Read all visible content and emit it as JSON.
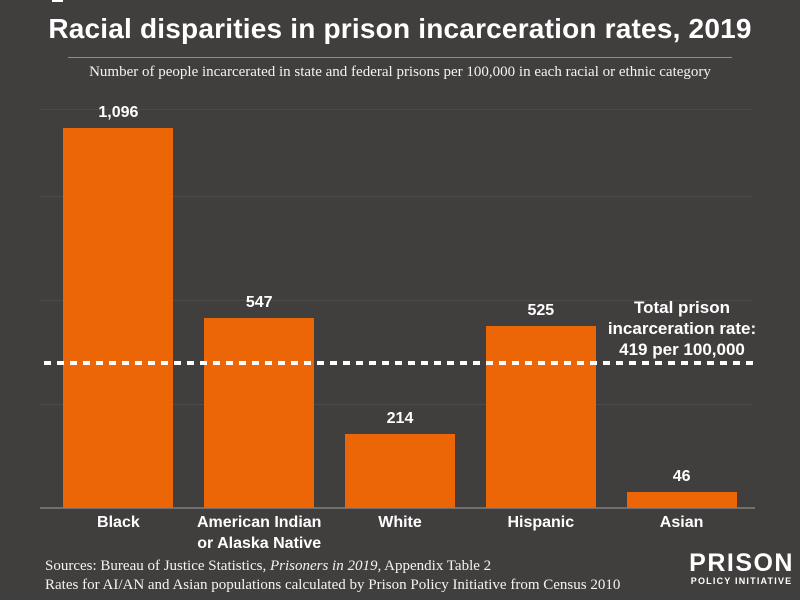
{
  "header": {
    "title": "Racial disparities in prison incarceration rates, 2019",
    "subtitle": "Number of people incarcerated in state and federal prisons per 100,000 in each racial or ethnic category"
  },
  "chart_data": {
    "type": "bar",
    "title": "Racial disparities in prison incarceration rates, 2019",
    "subtitle": "Number of people incarcerated in state and federal prisons per 100,000 in each racial or ethnic category",
    "categories": [
      "Black",
      "American Indian\nor Alaska Native",
      "White",
      "Hispanic",
      "Asian"
    ],
    "values": [
      1096,
      547,
      214,
      525,
      46
    ],
    "value_labels": [
      "1,096",
      "547",
      "214",
      "525",
      "46"
    ],
    "xlabel": "",
    "ylabel": "",
    "ylim": [
      0,
      1150
    ],
    "gridline_values": [
      300,
      600,
      900,
      1150
    ],
    "grid": "faint unlabeled horizontal gridlines, no y-axis tick labels",
    "legend_position": "none",
    "bar_color": "#EC6608",
    "reference_line": {
      "value": 419,
      "style": "dashed",
      "color": "#FFFFFF",
      "label": "Total prison\nincarceration rate:\n419 per 100,000"
    }
  },
  "footer": {
    "source_prefix": "Sources: Bureau of Justice Statistics, ",
    "source_italic": "Prisoners in 2019,",
    "source_suffix": " Appendix Table 2",
    "source_line2": "Rates for AI/AN and Asian populations calculated by Prison Policy Initiative from Census 2010",
    "logo": {
      "line1": "PRISON",
      "line2": "POLICY INITIATIVE"
    }
  },
  "colors": {
    "background": "#413E3E",
    "bar": "#EC6608",
    "text": "#FFFFFF",
    "gridline": "#4E4B4B",
    "axis_line": "#716E6E",
    "title_divider": "#8E8B8B",
    "reference_line": "#FFFFFF"
  }
}
